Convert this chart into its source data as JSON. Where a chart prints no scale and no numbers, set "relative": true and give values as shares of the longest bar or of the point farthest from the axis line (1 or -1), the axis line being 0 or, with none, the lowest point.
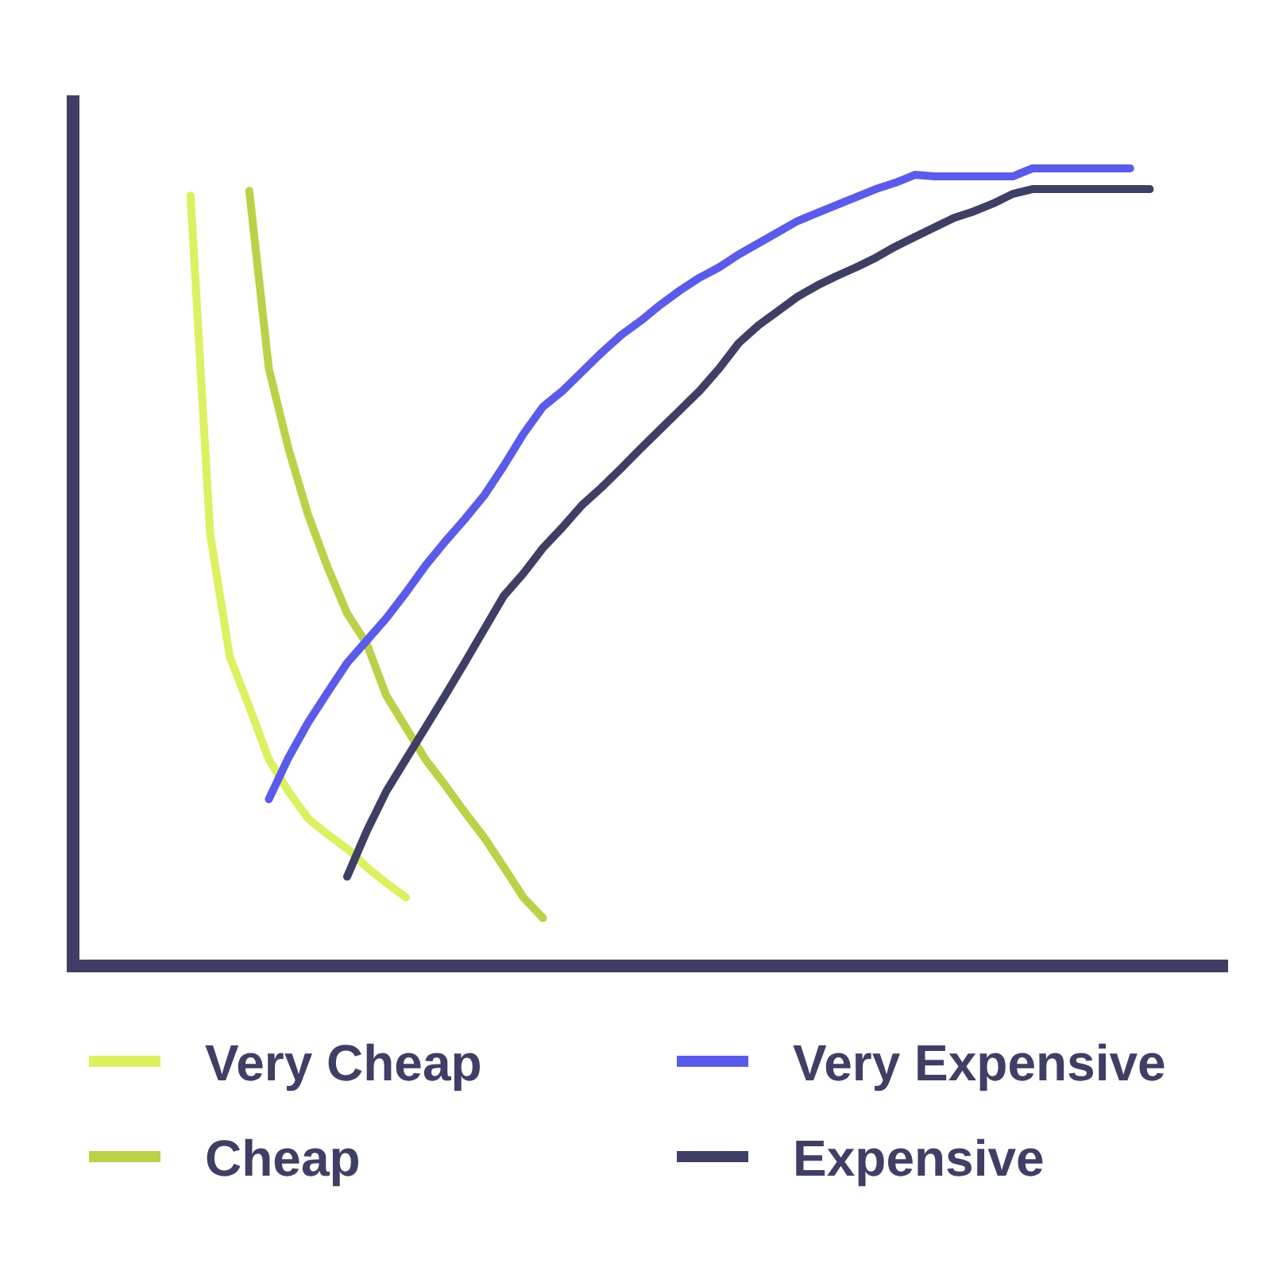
{
  "chart_data": {
    "type": "line",
    "relative": true,
    "legend": "bottom",
    "line_style": "solid",
    "marker": "none",
    "categories": [
      null,
      null,
      null,
      null,
      null,
      null,
      null,
      null,
      null,
      null,
      null,
      null,
      null,
      null,
      null,
      null,
      null,
      null,
      null,
      null,
      null,
      null,
      null,
      null,
      null,
      null,
      null,
      null,
      null,
      null,
      null,
      null,
      null,
      null,
      null,
      null,
      null,
      null,
      null,
      null,
      null,
      null,
      null,
      null,
      null,
      null,
      null,
      null,
      null,
      null,
      null,
      null,
      null,
      null,
      null,
      null,
      null,
      null,
      null,
      null
    ],
    "series": [
      {
        "name": "Very Cheap",
        "color": "#dcf060",
        "values": [
          null,
          null,
          null,
          null,
          null,
          null,
          0.966,
          0.542,
          0.388,
          0.325,
          0.259,
          0.219,
          0.185,
          0.165,
          0.147,
          0.124,
          0.104,
          0.086,
          null,
          null,
          null,
          null,
          null,
          null,
          null,
          null,
          null,
          null,
          null,
          null,
          null,
          null,
          null,
          null,
          null,
          null,
          null,
          null,
          null,
          null,
          null,
          null,
          null,
          null,
          null,
          null,
          null,
          null,
          null,
          null,
          null,
          null,
          null,
          null,
          null,
          null,
          null,
          null,
          null,
          null
        ]
      },
      {
        "name": "Cheap",
        "color": "#bcd147",
        "values": [
          null,
          null,
          null,
          null,
          null,
          null,
          null,
          null,
          null,
          0.972,
          0.749,
          0.649,
          0.566,
          0.5,
          0.442,
          0.404,
          0.339,
          0.299,
          0.259,
          0.227,
          0.193,
          0.161,
          0.124,
          0.086,
          0.06,
          null,
          null,
          null,
          null,
          null,
          null,
          null,
          null,
          null,
          null,
          null,
          null,
          null,
          null,
          null,
          null,
          null,
          null,
          null,
          null,
          null,
          null,
          null,
          null,
          null,
          null,
          null,
          null,
          null,
          null,
          null,
          null,
          null,
          null,
          null
        ]
      },
      {
        "name": "Very Expensive",
        "color": "#5b5bea",
        "values": [
          null,
          null,
          null,
          null,
          null,
          null,
          null,
          null,
          null,
          null,
          0.209,
          0.261,
          0.305,
          0.343,
          0.38,
          0.408,
          0.436,
          0.468,
          0.502,
          0.532,
          0.56,
          0.59,
          0.627,
          0.667,
          0.701,
          0.721,
          0.745,
          0.769,
          0.791,
          0.809,
          0.829,
          0.847,
          0.863,
          0.876,
          0.892,
          0.906,
          0.92,
          0.934,
          0.944,
          0.954,
          0.964,
          0.974,
          0.982,
          0.992,
          0.99,
          0.99,
          0.99,
          0.99,
          0.99,
          1,
          1,
          1,
          1,
          1,
          1,
          null,
          null,
          null,
          null,
          null
        ]
      },
      {
        "name": "Expensive",
        "color": "#3f3f66",
        "values": [
          null,
          null,
          null,
          null,
          null,
          null,
          null,
          null,
          null,
          null,
          null,
          null,
          null,
          null,
          0.112,
          0.169,
          0.219,
          0.259,
          0.299,
          0.339,
          0.38,
          0.422,
          0.464,
          0.492,
          0.524,
          0.55,
          0.578,
          0.6,
          0.624,
          0.649,
          0.673,
          0.697,
          0.721,
          0.749,
          0.781,
          0.803,
          0.821,
          0.839,
          0.853,
          0.865,
          0.876,
          0.888,
          0.902,
          0.914,
          0.926,
          0.938,
          0.946,
          0.956,
          0.968,
          0.974,
          0.974,
          0.974,
          0.974,
          0.974,
          0.974,
          0.974,
          null,
          null,
          null,
          null
        ]
      }
    ]
  }
}
